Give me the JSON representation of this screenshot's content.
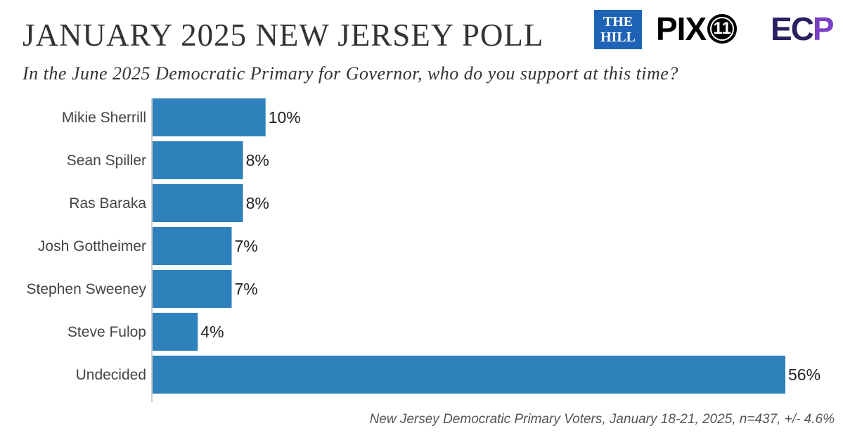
{
  "title": "JANUARY 2025 NEW JERSEY POLL",
  "subtitle": "In the June 2025 Democratic Primary for Governor, who do you support at this time?",
  "footnote": "New Jersey Democratic Primary Voters, January 18-21, 2025, n=437, +/- 4.6%",
  "logos": {
    "hill_line1": "THE",
    "hill_line2": "HILL",
    "pix_text": "PIX",
    "pix_number": "11",
    "ecp_text": "ECP"
  },
  "colors": {
    "bar": "#2e81bb",
    "text": "#333333",
    "label": "#444444",
    "axis": "#999999"
  },
  "chart_data": {
    "type": "bar",
    "orientation": "horizontal",
    "categories": [
      "Mikie Sherrill",
      "Sean Spiller",
      "Ras Baraka",
      "Josh Gottheimer",
      "Stephen Sweeney",
      "Steve Fulop",
      "Undecided"
    ],
    "values": [
      10,
      8,
      8,
      7,
      7,
      4,
      56
    ],
    "value_labels": [
      "10%",
      "8%",
      "8%",
      "7%",
      "7%",
      "4%",
      "56%"
    ],
    "xlim": [
      0,
      56
    ],
    "grid": false,
    "legend": "none"
  }
}
